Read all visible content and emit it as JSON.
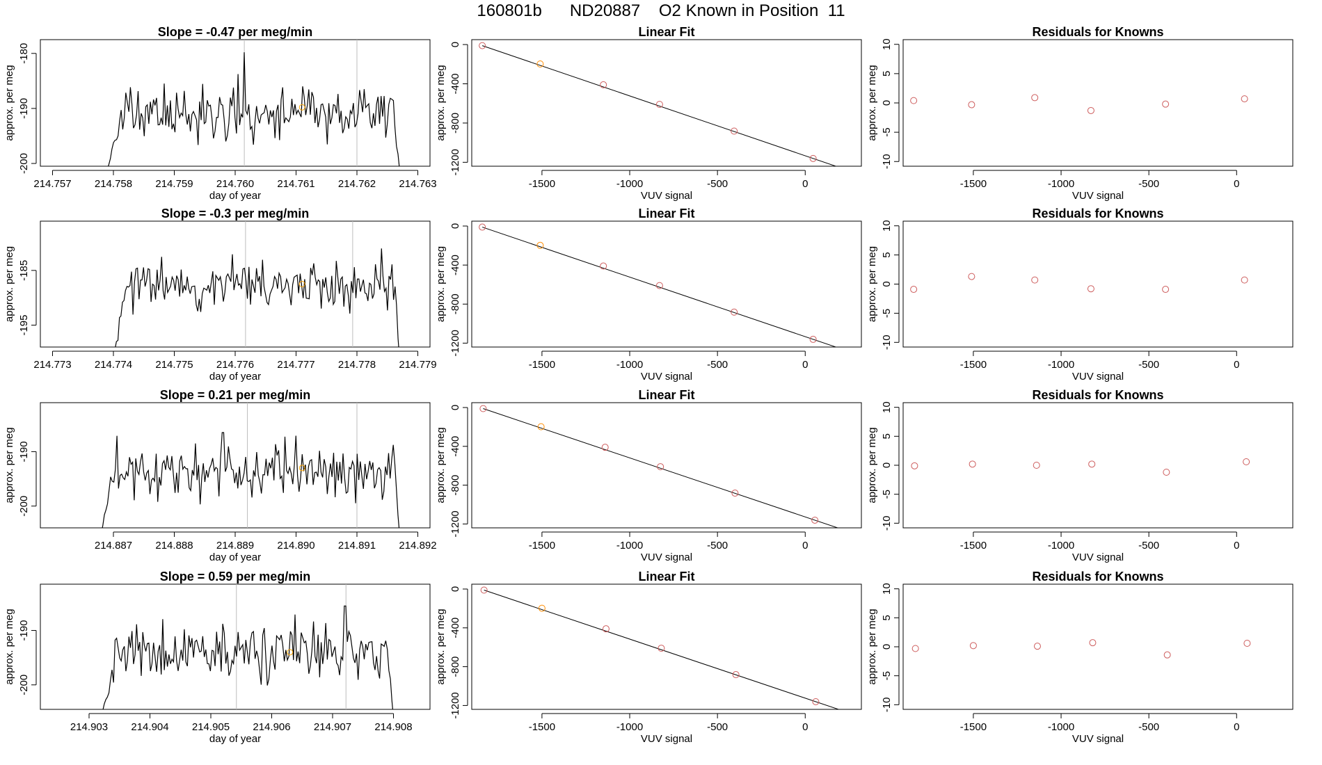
{
  "page": {
    "title": "160801b      ND20887    O2 Known in Position  11"
  },
  "colors": {
    "trace": "#000000",
    "marker_point": "#ffa500",
    "orange_point": "#ff8c00",
    "red_point": "#cd5c5c",
    "vline": "#bebebe"
  },
  "chart_data": [
    {
      "type": "line",
      "row": 1,
      "col": 1,
      "title": "Slope =  -0.47  per meg/min",
      "xlabel": "day of year",
      "ylabel": "approx. per meg",
      "xlim": [
        214.7568,
        214.7632
      ],
      "ylim": [
        -200.5,
        -177.5
      ],
      "xticks": [
        214.757,
        214.758,
        214.759,
        214.76,
        214.761,
        214.762,
        214.763
      ],
      "xtick_labels": [
        "214.757",
        "214.758",
        "214.759",
        "214.760",
        "214.761",
        "214.762",
        "214.763"
      ],
      "yticks": [
        -200,
        -190,
        -180
      ],
      "ytick_labels": [
        "-200",
        "-190",
        "-180"
      ],
      "trace": {
        "x_start": 214.7579,
        "x_end": 214.7627,
        "start_value": -201,
        "end_value": -201,
        "base": -191,
        "amplitude": 2.5,
        "spike_at": 214.76015,
        "spike_value": -179.8,
        "seed": 11
      },
      "vlines": [
        214.76015,
        214.762
      ],
      "marker": {
        "x": 214.7611,
        "y": -189.8
      }
    },
    {
      "type": "line",
      "row": 2,
      "col": 1,
      "title": "Slope =  -0.3  per meg/min",
      "xlabel": "day of year",
      "ylabel": "approx. per meg",
      "xlim": [
        214.7728,
        214.7792
      ],
      "ylim": [
        -199,
        -176
      ],
      "xticks": [
        214.773,
        214.774,
        214.775,
        214.776,
        214.777,
        214.778,
        214.779
      ],
      "xtick_labels": [
        "214.773",
        "214.774",
        "214.775",
        "214.776",
        "214.777",
        "214.778",
        "214.779"
      ],
      "yticks": [
        -195,
        -185
      ],
      "ytick_labels": [
        "-195",
        "-185"
      ],
      "trace": {
        "x_start": 214.774,
        "x_end": 214.7787,
        "start_value": -201,
        "end_value": -201,
        "base": -187.5,
        "amplitude": 2.3,
        "spike_at": 214.7784,
        "spike_value": -181,
        "seed": 23
      },
      "vlines": [
        214.77617,
        214.77793
      ],
      "marker": {
        "x": 214.7771,
        "y": -187.5
      }
    },
    {
      "type": "line",
      "row": 3,
      "col": 1,
      "title": "Slope =  0.21  per meg/min",
      "xlabel": "day of year",
      "ylabel": "approx. per meg",
      "xlim": [
        214.8858,
        214.8922
      ],
      "ylim": [
        -204,
        -181
      ],
      "xticks": [
        214.887,
        214.888,
        214.889,
        214.89,
        214.891,
        214.892
      ],
      "xtick_labels": [
        "214.887",
        "214.888",
        "214.889",
        "214.890",
        "214.891",
        "214.892"
      ],
      "yticks": [
        -200,
        -190
      ],
      "ytick_labels": [
        "-200",
        "-190"
      ],
      "trace": {
        "x_start": 214.8868,
        "x_end": 214.8917,
        "start_value": -205,
        "end_value": -205,
        "base": -193.5,
        "amplitude": 2.6,
        "spike_at": 214.8888,
        "spike_value": -186.5,
        "seed": 37
      },
      "vlines": [
        214.8892,
        214.891
      ],
      "marker": {
        "x": 214.8901,
        "y": -193.0
      }
    },
    {
      "type": "line",
      "row": 4,
      "col": 1,
      "title": "Slope =  0.59  per meg/min",
      "xlabel": "day of year",
      "ylabel": "approx. per meg",
      "xlim": [
        214.9022,
        214.9086
      ],
      "ylim": [
        -204.5,
        -181.5
      ],
      "xticks": [
        214.903,
        214.904,
        214.905,
        214.906,
        214.907,
        214.908
      ],
      "xtick_labels": [
        "214.903",
        "214.904",
        "214.905",
        "214.906",
        "214.907",
        "214.908"
      ],
      "yticks": [
        -200,
        -190
      ],
      "ytick_labels": [
        "-200",
        "-190"
      ],
      "trace": {
        "x_start": 214.9032,
        "x_end": 214.908,
        "start_value": -206,
        "end_value": -206,
        "base": -194,
        "amplitude": 2.6,
        "spike_at": 214.9072,
        "spike_value": -185.5,
        "seed": 53
      },
      "vlines": [
        214.90542,
        214.90722
      ],
      "marker": {
        "x": 214.9063,
        "y": -194.0
      }
    },
    {
      "type": "scatter",
      "row": 1,
      "col": 2,
      "title": "Linear Fit",
      "xlabel": "VUV signal",
      "ylabel": "approx. per meg",
      "xlim": [
        -1900,
        320
      ],
      "ylim": [
        -1240,
        50
      ],
      "xticks": [
        -1500,
        -1000,
        -500,
        0
      ],
      "xtick_labels": [
        "-1500",
        "-1000",
        "-500",
        "0"
      ],
      "yticks": [
        -1200,
        -800,
        -400,
        0
      ],
      "ytick_labels": [
        "-1200",
        "-800",
        "-400",
        "0"
      ],
      "fit": {
        "slope": 0.6425,
        "intercept": -1143
      },
      "x": [
        -1840,
        -1510,
        -1150,
        -830,
        -405,
        45
      ],
      "y": [
        -11,
        -198,
        -410,
        -610,
        -882,
        -1161
      ]
    },
    {
      "type": "scatter",
      "row": 2,
      "col": 2,
      "title": "Linear Fit",
      "xlabel": "VUV signal",
      "ylabel": "approx. per meg",
      "xlim": [
        -1900,
        320
      ],
      "ylim": [
        -1240,
        50
      ],
      "xticks": [
        -1500,
        -1000,
        -500,
        0
      ],
      "xtick_labels": [
        "-1500",
        "-1000",
        "-500",
        "0"
      ],
      "yticks": [
        -1200,
        -800,
        -400,
        0
      ],
      "ytick_labels": [
        "-1200",
        "-800",
        "-400",
        "0"
      ],
      "fit": {
        "slope": 0.6425,
        "intercept": -1143
      },
      "x": [
        -1840,
        -1510,
        -1150,
        -830,
        -405,
        45
      ],
      "y": [
        -11,
        -198,
        -410,
        -610,
        -882,
        -1161
      ]
    },
    {
      "type": "scatter",
      "row": 3,
      "col": 2,
      "title": "Linear Fit",
      "xlabel": "VUV signal",
      "ylabel": "approx. per meg",
      "xlim": [
        -1900,
        320
      ],
      "ylim": [
        -1240,
        50
      ],
      "xticks": [
        -1500,
        -1000,
        -500,
        0
      ],
      "xtick_labels": [
        "-1500",
        "-1000",
        "-500",
        "0"
      ],
      "yticks": [
        -1200,
        -800,
        -400,
        0
      ],
      "ytick_labels": [
        "-1200",
        "-800",
        "-400",
        "0"
      ],
      "fit": {
        "slope": 0.6425,
        "intercept": -1143
      },
      "x": [
        -1835,
        -1505,
        -1140,
        -825,
        -400,
        55
      ],
      "y": [
        -11,
        -198,
        -410,
        -610,
        -882,
        -1161
      ]
    },
    {
      "type": "scatter",
      "row": 4,
      "col": 2,
      "title": "Linear Fit",
      "xlabel": "VUV signal",
      "ylabel": "approx. per meg",
      "xlim": [
        -1900,
        320
      ],
      "ylim": [
        -1240,
        50
      ],
      "xticks": [
        -1500,
        -1000,
        -500,
        0
      ],
      "xtick_labels": [
        "-1500",
        "-1000",
        "-500",
        "0"
      ],
      "yticks": [
        -1200,
        -800,
        -400,
        0
      ],
      "ytick_labels": [
        "-1200",
        "-800",
        "-400",
        "0"
      ],
      "fit": {
        "slope": 0.6425,
        "intercept": -1143
      },
      "x": [
        -1830,
        -1500,
        -1135,
        -820,
        -395,
        60
      ],
      "y": [
        -11,
        -198,
        -410,
        -610,
        -882,
        -1161
      ]
    },
    {
      "type": "scatter",
      "row": 1,
      "col": 3,
      "title": "Residuals for Knowns",
      "xlabel": "VUV signal",
      "ylabel": "approx. per meg",
      "xlim": [
        -1900,
        320
      ],
      "ylim": [
        -10.8,
        10.8
      ],
      "xticks": [
        -1500,
        -1000,
        -500,
        0
      ],
      "xtick_labels": [
        "-1500",
        "-1000",
        "-500",
        "0"
      ],
      "yticks": [
        -10,
        -5,
        0,
        5,
        10
      ],
      "ytick_labels": [
        "-10",
        "-5",
        "0",
        "5",
        "10"
      ],
      "x": [
        -1840,
        -1510,
        -1150,
        -830,
        -405,
        45
      ],
      "y": [
        0.4,
        -0.3,
        0.9,
        -1.3,
        -0.2,
        0.7
      ]
    },
    {
      "type": "scatter",
      "row": 2,
      "col": 3,
      "title": "Residuals for Knowns",
      "xlabel": "VUV signal",
      "ylabel": "approx. per meg",
      "xlim": [
        -1900,
        320
      ],
      "ylim": [
        -10.8,
        10.8
      ],
      "xticks": [
        -1500,
        -1000,
        -500,
        0
      ],
      "xtick_labels": [
        "-1500",
        "-1000",
        "-500",
        "0"
      ],
      "yticks": [
        -10,
        -5,
        0,
        5,
        10
      ],
      "ytick_labels": [
        "-10",
        "-5",
        "0",
        "5",
        "10"
      ],
      "x": [
        -1840,
        -1510,
        -1150,
        -830,
        -405,
        45
      ],
      "y": [
        -0.9,
        1.3,
        0.7,
        -0.8,
        -0.9,
        0.7
      ]
    },
    {
      "type": "scatter",
      "row": 3,
      "col": 3,
      "title": "Residuals for Knowns",
      "xlabel": "VUV signal",
      "ylabel": "approx. per meg",
      "xlim": [
        -1900,
        320
      ],
      "ylim": [
        -10.8,
        10.8
      ],
      "xticks": [
        -1500,
        -1000,
        -500,
        0
      ],
      "xtick_labels": [
        "-1500",
        "-1000",
        "-500",
        "0"
      ],
      "yticks": [
        -10,
        -5,
        0,
        5,
        10
      ],
      "ytick_labels": [
        "-10",
        "-5",
        "0",
        "5",
        "10"
      ],
      "x": [
        -1835,
        -1505,
        -1140,
        -825,
        -400,
        55
      ],
      "y": [
        -0.1,
        0.2,
        0.0,
        0.2,
        -1.2,
        0.6
      ]
    },
    {
      "type": "scatter",
      "row": 4,
      "col": 3,
      "title": "Residuals for Knowns",
      "xlabel": "VUV signal",
      "ylabel": "approx. per meg",
      "xlim": [
        -1900,
        320
      ],
      "ylim": [
        -10.8,
        10.8
      ],
      "xticks": [
        -1500,
        -1000,
        -500,
        0
      ],
      "xtick_labels": [
        "-1500",
        "-1000",
        "-500",
        "0"
      ],
      "yticks": [
        -10,
        -5,
        0,
        5,
        10
      ],
      "ytick_labels": [
        "-10",
        "-5",
        "0",
        "5",
        "10"
      ],
      "x": [
        -1830,
        -1500,
        -1135,
        -820,
        -395,
        60
      ],
      "y": [
        -0.3,
        0.2,
        0.1,
        0.7,
        -1.4,
        0.6
      ]
    }
  ]
}
